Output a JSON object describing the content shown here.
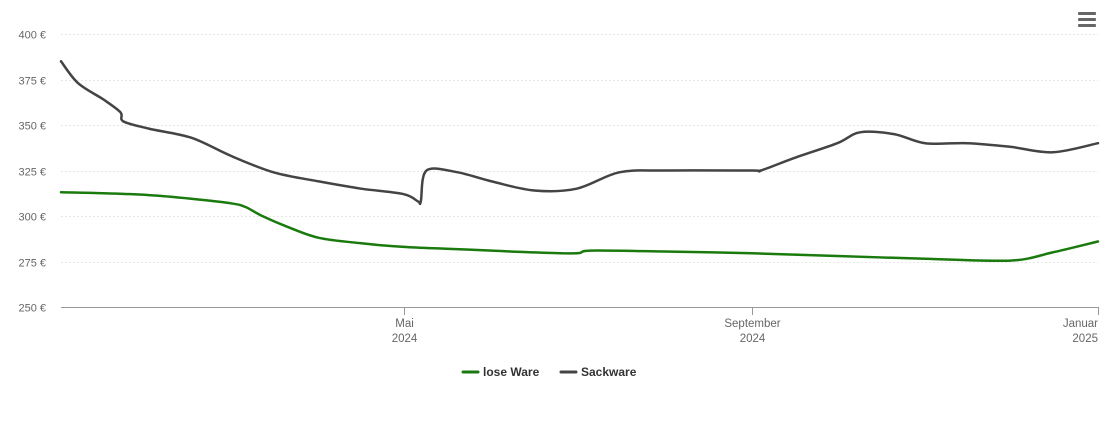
{
  "menu": {
    "icon": "hamburger-menu-icon"
  },
  "colors": {
    "lose_ware": "#1a7a0e",
    "sackware": "#444444",
    "grid": "#e6e6e6",
    "axis": "#999999"
  },
  "chart_data": {
    "type": "line",
    "title": "",
    "xlabel": "",
    "ylabel": "",
    "ylim": [
      250,
      400
    ],
    "xlim": [
      "2024-01-01",
      "2025-01-01"
    ],
    "y_ticks": [
      "250 €",
      "275 €",
      "300 €",
      "325 €",
      "350 €",
      "375 €",
      "400 €"
    ],
    "y_tick_values": [
      250,
      275,
      300,
      325,
      350,
      375,
      400
    ],
    "x_ticks": [
      {
        "date": "2024-05-01",
        "line1": "Mai",
        "line2": "2024"
      },
      {
        "date": "2024-09-01",
        "line1": "September",
        "line2": "2024"
      },
      {
        "date": "2025-01-01",
        "line1": "Januar",
        "line2": "2025"
      }
    ],
    "grid": true,
    "legend_position": "bottom-center",
    "series": [
      {
        "name": "lose Ware",
        "color": "#1a7a0e",
        "points": [
          [
            "2024-01-01",
            313
          ],
          [
            "2024-01-16",
            312.5
          ],
          [
            "2024-02-01",
            311.5
          ],
          [
            "2024-02-16",
            309.5
          ],
          [
            "2024-03-01",
            307
          ],
          [
            "2024-03-06",
            305
          ],
          [
            "2024-03-12",
            300
          ],
          [
            "2024-03-21",
            294
          ],
          [
            "2024-04-01",
            288
          ],
          [
            "2024-04-16",
            285
          ],
          [
            "2024-05-01",
            283
          ],
          [
            "2024-05-16",
            282
          ],
          [
            "2024-06-01",
            281
          ],
          [
            "2024-06-16",
            280
          ],
          [
            "2024-07-01",
            279.5
          ],
          [
            "2024-07-06",
            281
          ],
          [
            "2024-08-01",
            280.5
          ],
          [
            "2024-09-01",
            279.5
          ],
          [
            "2024-10-01",
            278
          ],
          [
            "2024-11-01",
            276.5
          ],
          [
            "2024-12-01",
            275.5
          ],
          [
            "2024-12-16",
            280
          ],
          [
            "2025-01-01",
            286
          ]
        ]
      },
      {
        "name": "Sackware",
        "color": "#444444",
        "points": [
          [
            "2024-01-01",
            385
          ],
          [
            "2024-01-07",
            373
          ],
          [
            "2024-01-16",
            364
          ],
          [
            "2024-01-22",
            357
          ],
          [
            "2024-01-23",
            352
          ],
          [
            "2024-02-01",
            348
          ],
          [
            "2024-02-16",
            343
          ],
          [
            "2024-03-01",
            333
          ],
          [
            "2024-03-16",
            324
          ],
          [
            "2024-04-01",
            319
          ],
          [
            "2024-04-16",
            315
          ],
          [
            "2024-05-01",
            312
          ],
          [
            "2024-05-06",
            308
          ],
          [
            "2024-05-07",
            308
          ],
          [
            "2024-05-09",
            325
          ],
          [
            "2024-05-20",
            324
          ],
          [
            "2024-06-01",
            319
          ],
          [
            "2024-06-16",
            314
          ],
          [
            "2024-07-01",
            315
          ],
          [
            "2024-07-16",
            324
          ],
          [
            "2024-08-01",
            325
          ],
          [
            "2024-09-01",
            325
          ],
          [
            "2024-09-04",
            325
          ],
          [
            "2024-09-16",
            332
          ],
          [
            "2024-10-01",
            340
          ],
          [
            "2024-10-09",
            346
          ],
          [
            "2024-10-21",
            345
          ],
          [
            "2024-11-01",
            340
          ],
          [
            "2024-11-16",
            340
          ],
          [
            "2024-12-01",
            338
          ],
          [
            "2024-12-16",
            335
          ],
          [
            "2025-01-01",
            340
          ]
        ]
      }
    ]
  }
}
